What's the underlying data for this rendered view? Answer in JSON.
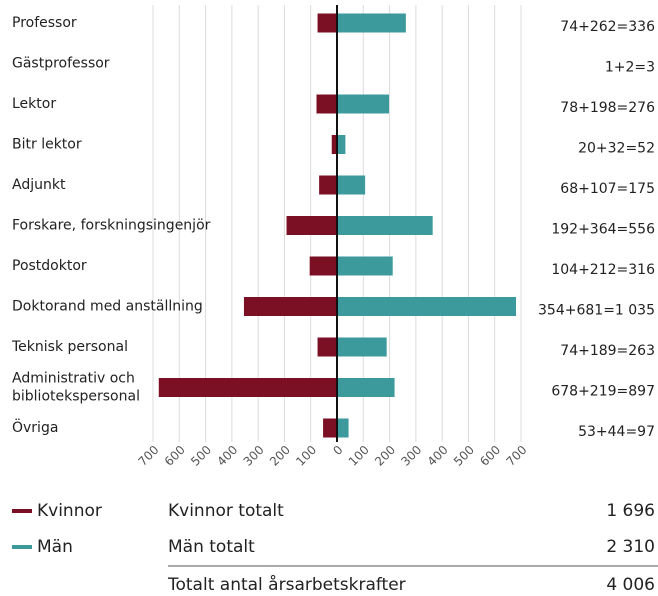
{
  "chart_data": {
    "type": "butterfly-bar",
    "categories": [
      "Professor",
      "Gästprofessor",
      "Lektor",
      "Bitr lektor",
      "Adjunkt",
      "Forskare, forskningsingenjör",
      "Postdoktor",
      "Doktorand med anställning",
      "Teknisk personal",
      "Administrativ och\nbibliotekspersonal",
      "Övriga"
    ],
    "series": [
      {
        "name": "Kvinnor",
        "color": "#7b0f24",
        "side": "left",
        "values": [
          74,
          1,
          78,
          20,
          68,
          192,
          104,
          354,
          74,
          678,
          53
        ]
      },
      {
        "name": "Män",
        "color": "#3d9a9c",
        "side": "right",
        "values": [
          262,
          2,
          198,
          32,
          107,
          364,
          212,
          681,
          189,
          219,
          44
        ]
      }
    ],
    "row_labels": [
      "74+262=336",
      "1+2=3",
      "78+198=276",
      "20+32=52",
      "68+107=175",
      "192+364=556",
      "104+212=316",
      "354+681=1 035",
      "74+189=263",
      "678+219=897",
      "53+44=97"
    ],
    "xlim": [
      0,
      700
    ],
    "xticks": [
      0,
      100,
      200,
      300,
      400,
      500,
      600,
      700
    ],
    "grid": true,
    "summary": [
      {
        "label": "Kvinnor totalt",
        "value": "1 696"
      },
      {
        "label": "Män totalt",
        "value": "2 310"
      },
      {
        "label": "Totalt antal årsarbetskrafter",
        "value": "4 006"
      }
    ]
  }
}
